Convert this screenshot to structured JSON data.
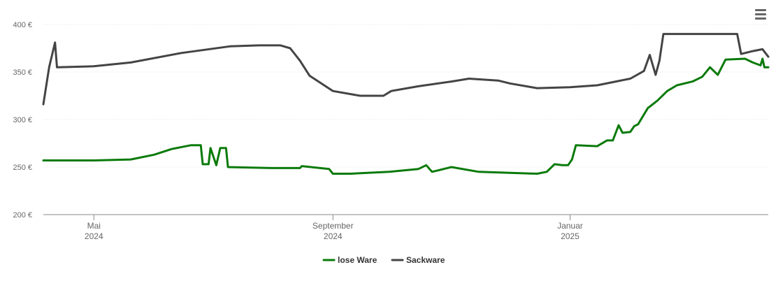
{
  "menu": {
    "icon": "hamburger-menu-icon"
  },
  "chart_data": {
    "type": "line",
    "currency": "€",
    "y_ticks": [
      {
        "value": 200,
        "label": "200 €"
      },
      {
        "value": 250,
        "label": "250 €"
      },
      {
        "value": 300,
        "label": "300 €"
      },
      {
        "value": 350,
        "label": "350 €"
      },
      {
        "value": 400,
        "label": "400 €"
      }
    ],
    "ylim": [
      200,
      400
    ],
    "xlim": [
      "2024-04-05",
      "2025-04-13"
    ],
    "x_ticks": [
      {
        "date": "2024-05-01",
        "month": "Mai",
        "year": "2024"
      },
      {
        "date": "2024-09-01",
        "month": "September",
        "year": "2024"
      },
      {
        "date": "2025-01-01",
        "month": "Januar",
        "year": "2025"
      }
    ],
    "grid": true,
    "legend_position": "bottom-center",
    "series": [
      {
        "name": "lose Ware",
        "color": "#0a7a0a",
        "points": [
          [
            "2024-04-05",
            257
          ],
          [
            "2024-05-01",
            257
          ],
          [
            "2024-05-20",
            258
          ],
          [
            "2024-06-01",
            263
          ],
          [
            "2024-06-10",
            269
          ],
          [
            "2024-06-20",
            273
          ],
          [
            "2024-06-25",
            273
          ],
          [
            "2024-06-26",
            253
          ],
          [
            "2024-06-29",
            253
          ],
          [
            "2024-06-30",
            270
          ],
          [
            "2024-07-03",
            252
          ],
          [
            "2024-07-05",
            270
          ],
          [
            "2024-07-08",
            270
          ],
          [
            "2024-07-09",
            250
          ],
          [
            "2024-08-01",
            249
          ],
          [
            "2024-08-15",
            249
          ],
          [
            "2024-08-16",
            251
          ],
          [
            "2024-08-30",
            248
          ],
          [
            "2024-09-01",
            243
          ],
          [
            "2024-09-10",
            243
          ],
          [
            "2024-09-30",
            245
          ],
          [
            "2024-10-15",
            248
          ],
          [
            "2024-10-19",
            252
          ],
          [
            "2024-10-22",
            245
          ],
          [
            "2024-11-01",
            250
          ],
          [
            "2024-11-15",
            245
          ],
          [
            "2024-12-01",
            244
          ],
          [
            "2024-12-15",
            243
          ],
          [
            "2024-12-20",
            245
          ],
          [
            "2024-12-24",
            253
          ],
          [
            "2024-12-28",
            252
          ],
          [
            "2024-12-31",
            252
          ],
          [
            "2025-01-02",
            258
          ],
          [
            "2025-01-04",
            273
          ],
          [
            "2025-01-15",
            272
          ],
          [
            "2025-01-20",
            278
          ],
          [
            "2025-01-23",
            278
          ],
          [
            "2025-01-26",
            294
          ],
          [
            "2025-01-28",
            286
          ],
          [
            "2025-02-01",
            287
          ],
          [
            "2025-02-03",
            293
          ],
          [
            "2025-02-05",
            295
          ],
          [
            "2025-02-10",
            312
          ],
          [
            "2025-02-15",
            320
          ],
          [
            "2025-02-20",
            330
          ],
          [
            "2025-02-25",
            336
          ],
          [
            "2025-03-05",
            340
          ],
          [
            "2025-03-10",
            345
          ],
          [
            "2025-03-14",
            355
          ],
          [
            "2025-03-18",
            347
          ],
          [
            "2025-03-22",
            363
          ],
          [
            "2025-04-01",
            364
          ],
          [
            "2025-04-05",
            360
          ],
          [
            "2025-04-09",
            357
          ],
          [
            "2025-04-10",
            364
          ],
          [
            "2025-04-11",
            355
          ],
          [
            "2025-04-13",
            355
          ]
        ]
      },
      {
        "name": "Sackware",
        "color": "#444444",
        "points": [
          [
            "2024-04-05",
            316
          ],
          [
            "2024-04-08",
            355
          ],
          [
            "2024-04-11",
            381
          ],
          [
            "2024-04-12",
            355
          ],
          [
            "2024-05-01",
            356
          ],
          [
            "2024-05-20",
            360
          ],
          [
            "2024-06-15",
            370
          ],
          [
            "2024-07-10",
            377
          ],
          [
            "2024-07-25",
            378
          ],
          [
            "2024-08-05",
            378
          ],
          [
            "2024-08-10",
            375
          ],
          [
            "2024-08-15",
            362
          ],
          [
            "2024-08-20",
            346
          ],
          [
            "2024-09-01",
            330
          ],
          [
            "2024-09-15",
            325
          ],
          [
            "2024-09-27",
            325
          ],
          [
            "2024-10-01",
            330
          ],
          [
            "2024-10-15",
            335
          ],
          [
            "2024-11-01",
            340
          ],
          [
            "2024-11-10",
            343
          ],
          [
            "2024-11-25",
            341
          ],
          [
            "2024-12-01",
            338
          ],
          [
            "2024-12-15",
            333
          ],
          [
            "2025-01-01",
            334
          ],
          [
            "2025-01-15",
            336
          ],
          [
            "2025-02-01",
            343
          ],
          [
            "2025-02-08",
            351
          ],
          [
            "2025-02-11",
            368
          ],
          [
            "2025-02-14",
            347
          ],
          [
            "2025-02-16",
            362
          ],
          [
            "2025-02-18",
            390
          ],
          [
            "2025-03-01",
            390
          ],
          [
            "2025-03-20",
            390
          ],
          [
            "2025-03-28",
            390
          ],
          [
            "2025-03-30",
            369
          ],
          [
            "2025-04-05",
            372
          ],
          [
            "2025-04-10",
            374
          ],
          [
            "2025-04-13",
            366
          ]
        ]
      }
    ]
  }
}
